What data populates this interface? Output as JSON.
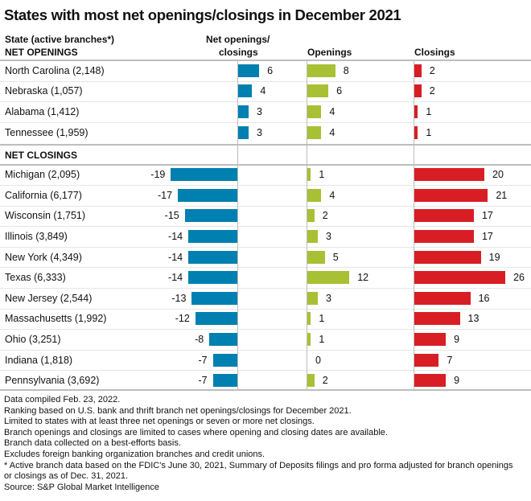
{
  "chart_data": {
    "type": "bar",
    "title": "States with most net openings/closings in December 2021",
    "columns": {
      "state": "State (active branches*)",
      "net": "Net openings/ closings",
      "net_line1": "Net openings/",
      "net_line2": "closings",
      "openings": "Openings",
      "closings": "Closings"
    },
    "sections": [
      {
        "label": "NET OPENINGS",
        "rows": [
          {
            "state": "North Carolina (2,148)",
            "net": 6,
            "openings": 8,
            "closings": 2
          },
          {
            "state": "Nebraska (1,057)",
            "net": 4,
            "openings": 6,
            "closings": 2
          },
          {
            "state": "Alabama (1,412)",
            "net": 3,
            "openings": 4,
            "closings": 1
          },
          {
            "state": "Tennessee (1,959)",
            "net": 3,
            "openings": 4,
            "closings": 1
          }
        ]
      },
      {
        "label": "NET CLOSINGS",
        "rows": [
          {
            "state": "Michigan (2,095)",
            "net": -19,
            "openings": 1,
            "closings": 20
          },
          {
            "state": "California (6,177)",
            "net": -17,
            "openings": 4,
            "closings": 21
          },
          {
            "state": "Wisconsin (1,751)",
            "net": -15,
            "openings": 2,
            "closings": 17
          },
          {
            "state": "Illinois (3,849)",
            "net": -14,
            "openings": 3,
            "closings": 17
          },
          {
            "state": "New York (4,349)",
            "net": -14,
            "openings": 5,
            "closings": 19
          },
          {
            "state": "Texas (6,333)",
            "net": -14,
            "openings": 12,
            "closings": 26
          },
          {
            "state": "New Jersey (2,544)",
            "net": -13,
            "openings": 3,
            "closings": 16
          },
          {
            "state": "Massachusetts (1,992)",
            "net": -12,
            "openings": 1,
            "closings": 13
          },
          {
            "state": "Ohio (3,251)",
            "net": -8,
            "openings": 1,
            "closings": 9
          },
          {
            "state": "Indiana (1,818)",
            "net": -7,
            "openings": 0,
            "closings": 7
          },
          {
            "state": "Pennsylvania (3,692)",
            "net": -7,
            "openings": 2,
            "closings": 9
          }
        ]
      }
    ],
    "colors": {
      "net": "#0080b0",
      "openings": "#a8c034",
      "closings": "#d81e24"
    },
    "grid": false
  },
  "footnotes": [
    "Data compiled Feb. 23, 2022.",
    "Ranking based on U.S. bank and thrift branch net openings/closings for December 2021.",
    "Limited to states with at least three net openings or seven or more net closings.",
    "Branch openings and closings are limited to cases where opening and closing dates are available.",
    "Branch data collected on a best-efforts basis.",
    "Excludes foreign banking organization branches and credit unions.",
    "* Active branch data based on the FDIC's June 30, 2021, Summary of Deposits filings and pro forma adjusted for branch openings",
    "or closings as of Dec. 31, 2021.",
    "Source: S&P Global Market Intelligence"
  ]
}
